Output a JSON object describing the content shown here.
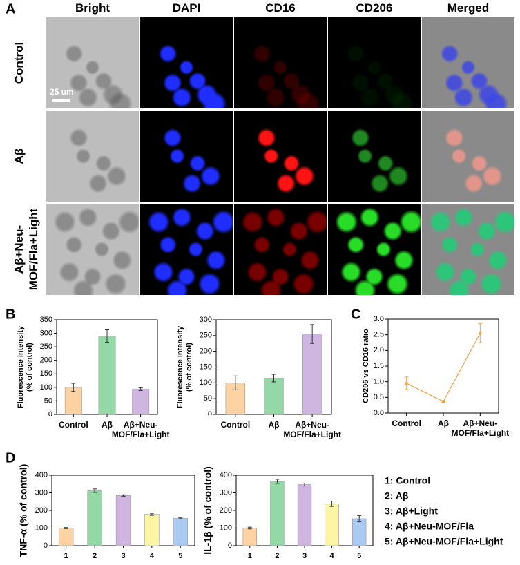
{
  "panel_labels": [
    "A",
    "B",
    "C",
    "D"
  ],
  "microscopy": {
    "columns": [
      "Bright",
      "DAPI",
      "CD16",
      "CD206",
      "Merged"
    ],
    "rows": [
      "Control",
      "Aβ",
      "Aβ+Neu-MOF/Fla+Light"
    ],
    "scale_bar": "25 um"
  },
  "legend": [
    "1: Control",
    "2: Aβ",
    "3: Aβ+Light",
    "4: Aβ+Neu-MOF/Fla",
    "5: Aβ+Neu-MOF/Fla+Light"
  ],
  "chart_data": [
    {
      "type": "bar",
      "ylabel": [
        "Fluorescence intensity",
        "(% of control)"
      ],
      "categories": [
        "Control",
        "Aβ",
        "Aβ+Neu-MOF/Fla+Light"
      ],
      "values": [
        100,
        290,
        93
      ],
      "errors": [
        15,
        23,
        5
      ],
      "colors": [
        "#fdd3a3",
        "#93d8a6",
        "#cfb6e0"
      ],
      "ylim": [
        0,
        350
      ],
      "yticks": [
        0,
        50,
        100,
        150,
        200,
        250,
        300,
        350
      ]
    },
    {
      "type": "bar",
      "ylabel": [
        "Fluorescence intensity",
        "(% of control)"
      ],
      "categories": [
        "Control",
        "Aβ",
        "Aβ+Neu-MOF/Fla+Light"
      ],
      "values": [
        100,
        115,
        255
      ],
      "errors": [
        22,
        12,
        30
      ],
      "colors": [
        "#fdd3a3",
        "#93d8a6",
        "#cfb6e0"
      ],
      "ylim": [
        0,
        300
      ],
      "yticks": [
        0,
        50,
        100,
        150,
        200,
        250,
        300
      ]
    },
    {
      "type": "line",
      "ylabel": "CD206 vs CD16 ratio",
      "categories": [
        "Control",
        "Aβ",
        "Aβ+Neu-MOF/Fla+Light"
      ],
      "values": [
        0.95,
        0.37,
        2.55
      ],
      "errors": [
        0.2,
        0.03,
        0.3
      ],
      "color": "#f5a142",
      "ylim": [
        0,
        3
      ],
      "yticks": [
        {
          "value": 0,
          "label": "0.0"
        },
        0.5,
        {
          "value": 1,
          "label": "1.0"
        },
        1.5,
        {
          "value": 2,
          "label": "2.0"
        },
        2.5,
        {
          "value": 3,
          "label": "3.0"
        }
      ]
    },
    {
      "type": "bar",
      "ylabel": "TNF-α (% of control)",
      "categories": [
        "1",
        "2",
        "3",
        "4",
        "5"
      ],
      "values": [
        100,
        312,
        285,
        178,
        155
      ],
      "errors": [
        3,
        10,
        4,
        6,
        3
      ],
      "colors": [
        "#fdd3a3",
        "#93d8a6",
        "#cfb6e0",
        "#fbf5a4",
        "#aacaf2"
      ],
      "ylim": [
        0,
        400
      ],
      "yticks": [
        0,
        100,
        200,
        300,
        400
      ]
    },
    {
      "type": "bar",
      "ylabel": "IL-1β (% of control)",
      "categories": [
        "1",
        "2",
        "3",
        "4",
        "5"
      ],
      "values": [
        100,
        365,
        347,
        238,
        153
      ],
      "errors": [
        5,
        12,
        8,
        15,
        18
      ],
      "colors": [
        "#fdd3a3",
        "#93d8a6",
        "#cfb6e0",
        "#fbf5a4",
        "#aacaf2"
      ],
      "ylim": [
        0,
        400
      ],
      "yticks": [
        0,
        100,
        200,
        300,
        400
      ]
    }
  ]
}
